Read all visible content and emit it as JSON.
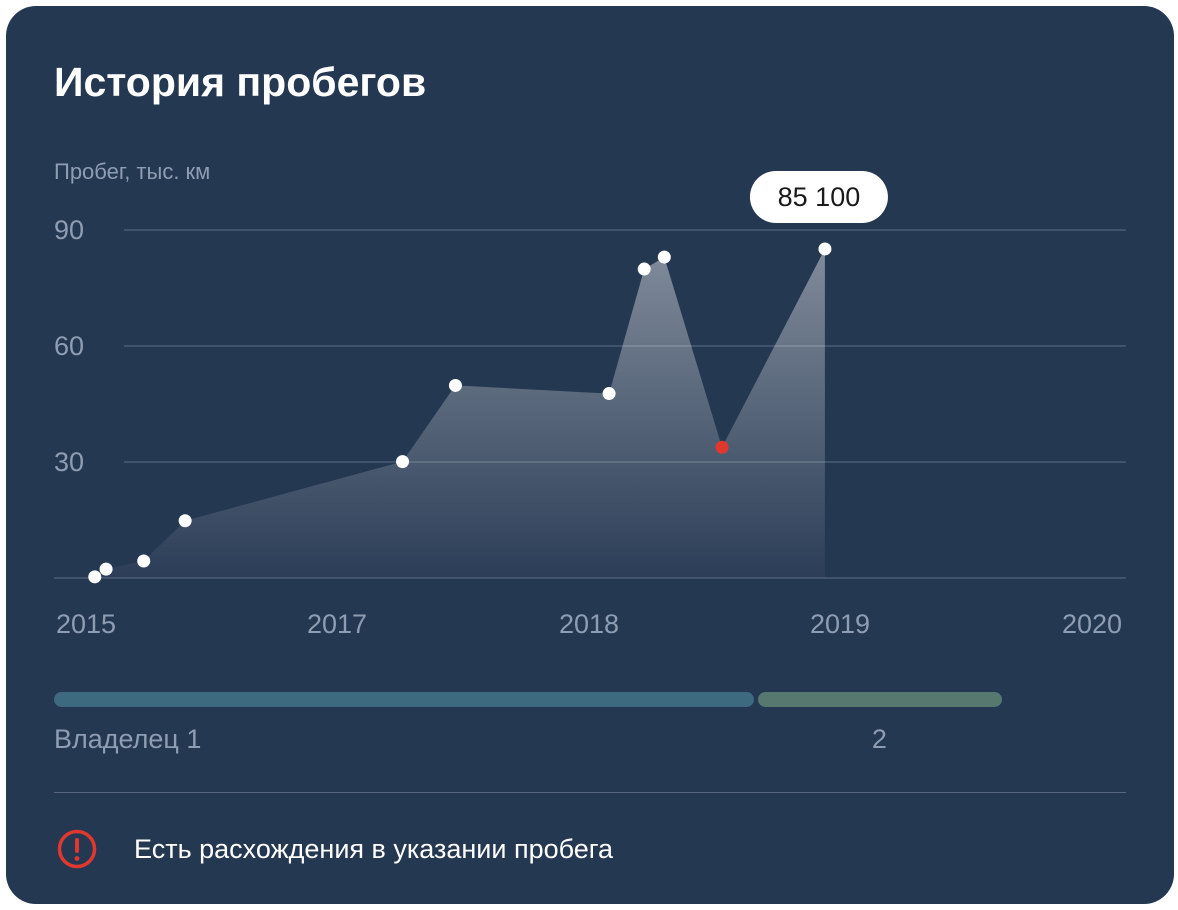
{
  "card": {
    "title": "История пробегов"
  },
  "chart_data": {
    "type": "area",
    "ylabel": "Пробег, тыс. км",
    "ylim": [
      0,
      90
    ],
    "yticks": [
      30,
      60,
      90
    ],
    "ytick_labels": [
      "30",
      "60",
      "90"
    ],
    "xlim": [
      2015,
      2020
    ],
    "xticks": [
      2015,
      2017,
      2018,
      2019,
      2020
    ],
    "xtick_labels": [
      "2015",
      "2017",
      "2018",
      "2019",
      "2020"
    ],
    "grid": true,
    "series": [
      {
        "points": [
          {
            "x": 2015.07,
            "y": 0.3
          },
          {
            "x": 2015.16,
            "y": 2.3
          },
          {
            "x": 2015.46,
            "y": 4.4
          },
          {
            "x": 2015.79,
            "y": 14.8
          },
          {
            "x": 2017.26,
            "y": 30.1
          },
          {
            "x": 2017.47,
            "y": 49.8
          },
          {
            "x": 2018.08,
            "y": 47.7
          },
          {
            "x": 2018.22,
            "y": 79.9
          },
          {
            "x": 2018.3,
            "y": 83.0
          },
          {
            "x": 2018.53,
            "y": 33.8
          },
          {
            "x": 2018.94,
            "y": 85.1
          }
        ],
        "anomaly_index": 9
      }
    ],
    "highlight": {
      "label": "85 100"
    },
    "colors": {
      "point": "#ffffff",
      "anomaly": "#e0382e",
      "grid": "#4a5c75",
      "axis_text": "#8e9db2"
    }
  },
  "owners": [
    {
      "label": "Владелец 1",
      "from": 2015.0,
      "to": 2017.65,
      "color": "#3e6a80"
    },
    {
      "label": "2",
      "from": 2017.65,
      "to": 2018.58,
      "color": "#56786f"
    }
  ],
  "warning": {
    "icon": "exclamation-circle-icon",
    "text": "Есть расхождения в указании пробега",
    "color": "#e0382e"
  }
}
